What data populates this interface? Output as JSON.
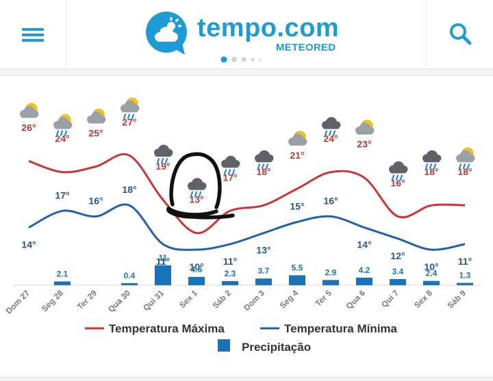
{
  "header": {
    "logo_main": "tempo.com",
    "logo_sub": "METEORED"
  },
  "colors": {
    "brand": "#1e9ad6",
    "max_line": "#cc3333",
    "min_line": "#1f5fae",
    "precip_bar": "#1a73b8",
    "temp_max_label": "#b23a3a",
    "temp_min_label": "#2a5588"
  },
  "chart_data": {
    "type": "line",
    "categories": [
      "Dom 27",
      "Seg 28",
      "Ter 29",
      "Qua 30",
      "Qui 31",
      "Sex 1",
      "Sáb 2",
      "Dom 3",
      "Seg 4",
      "Ter 5",
      "Qua 6",
      "Qui 7",
      "Sex 8",
      "Sáb 9"
    ],
    "series": [
      {
        "name": "Temperatura Máxima",
        "values": [
          26,
          24,
          25,
          27,
          19,
          13,
          17,
          18,
          21,
          24,
          23,
          16,
          18,
          18
        ],
        "labels": [
          "26°",
          "24°",
          "25°",
          "27°",
          "19°",
          "13°",
          "17°",
          "18°",
          "21°",
          "24°",
          "23°",
          "16°",
          "18°",
          "18°"
        ]
      },
      {
        "name": "Temperatura Mínima",
        "values": [
          14,
          17,
          16,
          18,
          11,
          10,
          11,
          13,
          15,
          16,
          14,
          12,
          10,
          11
        ],
        "labels": [
          "14°",
          "17°",
          "16°",
          "18°",
          "11°",
          "10°",
          "11°",
          "13°",
          "15°",
          "16°",
          "14°",
          "12°",
          "10°",
          "11°"
        ]
      },
      {
        "name": "Precipitação",
        "type": "bar",
        "values": [
          0,
          2.1,
          0,
          0.4,
          11,
          4.6,
          2.3,
          3.7,
          5.5,
          2.9,
          4.2,
          3.4,
          2.4,
          1.3
        ],
        "labels": [
          "",
          "2.1",
          "",
          "0.4",
          "11",
          "4.6",
          "2.3",
          "3.7",
          "5.5",
          "2.9",
          "4.2",
          "3.4",
          "2.4",
          "1.3"
        ]
      }
    ],
    "icons": [
      "sun-cloud-icon",
      "sun-cloud-rain-icon",
      "sun-cloud-icon",
      "sun-cloud-rain-icon",
      "cloud-rain-icon",
      "cloud-rain-icon",
      "cloud-rain-icon",
      "cloud-rain-icon",
      "sun-cloud-icon",
      "cloud-rain-icon",
      "sun-cloud-icon",
      "cloud-rain-icon",
      "cloud-rain-icon",
      "sun-cloud-rain-icon"
    ],
    "legend": {
      "max": "Temperatura Máxima",
      "min": "Temperatura Mínima",
      "precip": "Precipitação"
    }
  }
}
